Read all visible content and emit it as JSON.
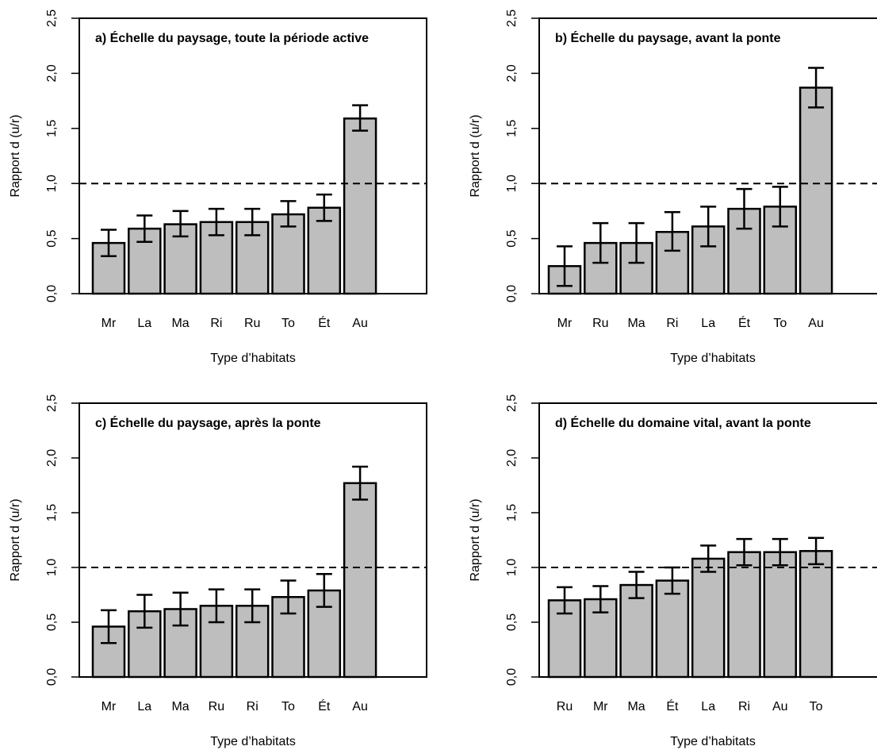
{
  "figure": {
    "panels": [
      {
        "id": "a",
        "title": "a) Échelle du paysage, toute la période active",
        "xlabel": "Type d’habitats",
        "ylabel": "Rapport d (u/r)"
      },
      {
        "id": "b",
        "title": "b) Échelle du paysage, avant la ponte",
        "xlabel": "Type d’habitats",
        "ylabel": "Rapport d (u/r)"
      },
      {
        "id": "c",
        "title": "c) Échelle du paysage, après la ponte",
        "xlabel": "Type d’habitats",
        "ylabel": "Rapport d (u/r)"
      },
      {
        "id": "d",
        "title": "d) Échelle du domaine vital, avant la ponte",
        "xlabel": "Type d’habitats",
        "ylabel": "Rapport d (u/r)"
      }
    ]
  },
  "chart_data": [
    {
      "type": "bar",
      "title": "a) Échelle du paysage, toute la période active",
      "xlabel": "Type d’habitats",
      "ylabel": "Rapport d (u/r)",
      "categories": [
        "Mr",
        "La",
        "Ma",
        "Ri",
        "Ru",
        "To",
        "Ét",
        "Au"
      ],
      "values": [
        0.46,
        0.59,
        0.63,
        0.65,
        0.65,
        0.72,
        0.78,
        1.59
      ],
      "error_low": [
        0.34,
        0.47,
        0.52,
        0.53,
        0.53,
        0.61,
        0.66,
        1.48
      ],
      "error_high": [
        0.58,
        0.71,
        0.75,
        0.77,
        0.77,
        0.84,
        0.9,
        1.71
      ],
      "reference_line": 1.0,
      "ylim": [
        0,
        2.5
      ],
      "yticks": [
        "0,0",
        "0,5",
        "1,0",
        "1,5",
        "2,0",
        "2,5"
      ],
      "bar_color": "#bebebe",
      "grid": false
    },
    {
      "type": "bar",
      "title": "b) Échelle du paysage, avant la ponte",
      "xlabel": "Type d’habitats",
      "ylabel": "Rapport d (u/r)",
      "categories": [
        "Mr",
        "Ru",
        "Ma",
        "Ri",
        "La",
        "Ét",
        "To",
        "Au"
      ],
      "values": [
        0.25,
        0.46,
        0.46,
        0.56,
        0.61,
        0.77,
        0.79,
        1.87
      ],
      "error_low": [
        0.07,
        0.28,
        0.28,
        0.39,
        0.43,
        0.59,
        0.61,
        1.69
      ],
      "error_high": [
        0.43,
        0.64,
        0.64,
        0.74,
        0.79,
        0.95,
        0.97,
        2.05
      ],
      "reference_line": 1.0,
      "ylim": [
        0,
        2.5
      ],
      "yticks": [
        "0,0",
        "0,5",
        "1,0",
        "1,5",
        "2,0",
        "2,5"
      ],
      "bar_color": "#bebebe",
      "grid": false
    },
    {
      "type": "bar",
      "title": "c) Échelle du paysage, après la ponte",
      "xlabel": "Type d’habitats",
      "ylabel": "Rapport d (u/r)",
      "categories": [
        "Mr",
        "La",
        "Ma",
        "Ru",
        "Ri",
        "To",
        "Ét",
        "Au"
      ],
      "values": [
        0.46,
        0.6,
        0.62,
        0.65,
        0.65,
        0.73,
        0.79,
        1.77
      ],
      "error_low": [
        0.31,
        0.45,
        0.47,
        0.5,
        0.5,
        0.58,
        0.64,
        1.62
      ],
      "error_high": [
        0.61,
        0.75,
        0.77,
        0.8,
        0.8,
        0.88,
        0.94,
        1.92
      ],
      "reference_line": 1.0,
      "ylim": [
        0,
        2.5
      ],
      "yticks": [
        "0,0",
        "0,5",
        "1,0",
        "1,5",
        "2,0",
        "2,5"
      ],
      "bar_color": "#bebebe",
      "grid": false
    },
    {
      "type": "bar",
      "title": "d) Échelle du domaine vital, avant la ponte",
      "xlabel": "Type d’habitats",
      "ylabel": "Rapport d (u/r)",
      "categories": [
        "Ru",
        "Mr",
        "Ma",
        "Ét",
        "La",
        "Ri",
        "Au",
        "To"
      ],
      "values": [
        0.7,
        0.71,
        0.84,
        0.88,
        1.08,
        1.14,
        1.14,
        1.15
      ],
      "error_low": [
        0.58,
        0.59,
        0.72,
        0.76,
        0.96,
        1.02,
        1.02,
        1.03
      ],
      "error_high": [
        0.82,
        0.83,
        0.96,
        1.0,
        1.2,
        1.26,
        1.26,
        1.27
      ],
      "reference_line": 1.0,
      "ylim": [
        0,
        2.5
      ],
      "yticks": [
        "0,0",
        "0,5",
        "1,0",
        "1,5",
        "2,0",
        "2,5"
      ],
      "bar_color": "#bebebe",
      "grid": false
    }
  ]
}
